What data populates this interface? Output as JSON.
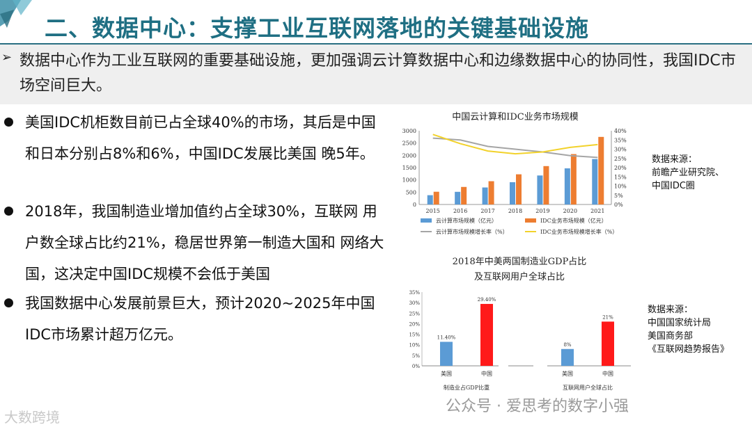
{
  "header": {
    "title": "二、数据中心：支撑工业互联网落地的关键基础设施"
  },
  "intro": {
    "arrow": "➢",
    "text": "数据中心作为工业互联网的重要基础设施，更加强调云计算数据中心和边缘数据中心的协同性，我国IDC市场空间巨大。"
  },
  "bullets": [
    {
      "text": "美国IDC机柜数目前已占全球40%的市场，其后是中国和日本分别占8%和6%，中国IDC发展比美国 晚5年。"
    },
    {
      "text": "2018年，我国制造业增加值约占全球30%，互联网 用户数全球占比约21%，稳居世界第一制造大国和 网络大国，这决定中国IDC规模不会低于美国"
    },
    {
      "text": "我国数据中心发展前景巨大，预计2020~2025年中国IDC市场累计超万亿元。"
    }
  ],
  "sources": {
    "chart1": [
      "数据来源：",
      "前瞻产业研究院、",
      "中国IDC圈"
    ],
    "chart2": [
      "数据来源：",
      "中国国家统计局",
      "美国商务部",
      "《互联网趋势报告》"
    ]
  },
  "watermark": {
    "text": "公众号 · 爱思考的数字小强",
    "logo": "大数跨境"
  },
  "colors": {
    "title": "#1f6f83",
    "blue": "#5b9bd5",
    "orange": "#ed7d31",
    "gray": "#a5a5a5",
    "yellow": "#f2d22b",
    "red": "#ff1a1a"
  },
  "chart_data": [
    {
      "type": "bar",
      "title": "中国云计算和IDC业务市场规模",
      "categories": [
        "2015",
        "2016",
        "2017",
        "2018",
        "2019",
        "2020",
        "2021"
      ],
      "yticks": [
        "3000",
        "2500",
        "2000",
        "1500",
        "1000",
        "500",
        "0"
      ],
      "y2ticks": [
        "40%",
        "35%",
        "30%",
        "25%",
        "20%",
        "15%",
        "10%",
        "5%",
        "0%"
      ],
      "ylim": [
        0,
        3000
      ],
      "y2lim": [
        0,
        40
      ],
      "series": [
        {
          "name": "云计算市场规模（亿元）",
          "kind": "bar",
          "axis": "left",
          "values": [
            378,
            515,
            692,
            907,
            1180,
            1470,
            1850
          ]
        },
        {
          "name": "IDC业务市场规模（亿元）",
          "kind": "bar",
          "axis": "left",
          "values": [
            518,
            714,
            947,
            1228,
            1562,
            2050,
            2750
          ]
        },
        {
          "name": "云计算市场规模增长率（%）",
          "kind": "line",
          "axis": "right",
          "values": [
            36.0,
            35.0,
            31.5,
            30.0,
            28.5,
            26.5,
            25.5
          ]
        },
        {
          "name": "IDC业务市场规模增长率（%）",
          "kind": "line",
          "axis": "right",
          "values": [
            38.0,
            33.0,
            29.0,
            27.5,
            28.5,
            31.0,
            32.5
          ]
        }
      ],
      "legend": "bottom"
    },
    {
      "type": "bar",
      "title": "2018年中美两国制造业GDP占比",
      "subtitle": "及互联网用户全球占比",
      "yticks": [
        "35%",
        "30%",
        "25%",
        "20%",
        "15%",
        "10%",
        "5%",
        "0%"
      ],
      "ylim": [
        0,
        35
      ],
      "groups": [
        {
          "label": "制造业占GDP比重",
          "bars": [
            {
              "category": "美国",
              "value": 11.4,
              "label": "11.40%",
              "color": "blue"
            },
            {
              "category": "中国",
              "value": 29.4,
              "label": "29.40%",
              "color": "red"
            }
          ]
        },
        {
          "label": "互联网用户全球占比",
          "bars": [
            {
              "category": "美国",
              "value": 8,
              "label": "8%",
              "color": "blue"
            },
            {
              "category": "中国",
              "value": 21,
              "label": "21%",
              "color": "red"
            }
          ]
        }
      ]
    }
  ]
}
